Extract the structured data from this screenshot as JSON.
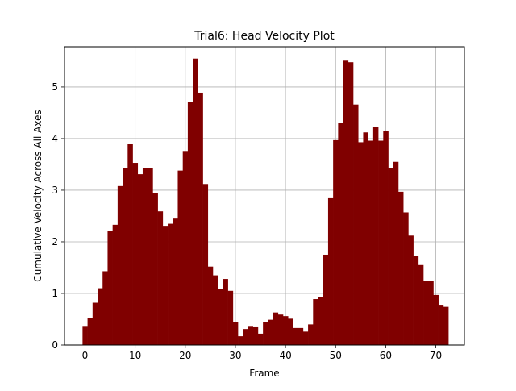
{
  "chart_data": {
    "type": "bar",
    "title": "Trial6: Head Velocity Plot",
    "xlabel": "Frame",
    "ylabel": "Cumulative Velocity Across All Axes",
    "bar_color": "#800000",
    "xlim": [
      -4.1,
      75.7
    ],
    "ylim": [
      0,
      5.78
    ],
    "xticks": [
      0,
      10,
      20,
      30,
      40,
      50,
      60,
      70
    ],
    "yticks": [
      0,
      1,
      2,
      3,
      4,
      5
    ],
    "grid": true,
    "bar_width": 1.0,
    "x": [
      0,
      1,
      2,
      3,
      4,
      5,
      6,
      7,
      8,
      9,
      10,
      11,
      12,
      13,
      14,
      15,
      16,
      17,
      18,
      19,
      20,
      21,
      22,
      23,
      24,
      25,
      26,
      27,
      28,
      29,
      30,
      31,
      32,
      33,
      34,
      35,
      36,
      37,
      38,
      39,
      40,
      41,
      42,
      43,
      44,
      45,
      46,
      47,
      48,
      49,
      50,
      51,
      52,
      53,
      54,
      55,
      56,
      57,
      58,
      59,
      60,
      61,
      62,
      63,
      64,
      65,
      66,
      67,
      68,
      69,
      70,
      71,
      72
    ],
    "values": [
      0.37,
      0.52,
      0.82,
      1.1,
      1.43,
      2.21,
      2.33,
      3.08,
      3.43,
      3.89,
      3.53,
      3.31,
      3.43,
      3.43,
      2.95,
      2.59,
      2.31,
      2.35,
      2.45,
      3.38,
      3.76,
      4.71,
      5.55,
      4.89,
      3.12,
      1.52,
      1.35,
      1.09,
      1.28,
      1.05,
      0.45,
      0.17,
      0.31,
      0.37,
      0.36,
      0.22,
      0.45,
      0.49,
      0.63,
      0.59,
      0.56,
      0.51,
      0.33,
      0.33,
      0.26,
      0.4,
      0.89,
      0.93,
      1.75,
      2.86,
      3.97,
      4.31,
      5.51,
      5.48,
      4.66,
      3.93,
      4.12,
      3.96,
      4.22,
      3.96,
      4.14,
      3.43,
      3.55,
      2.97,
      2.57,
      2.12,
      1.72,
      1.55,
      1.24,
      1.24,
      0.97,
      0.78,
      0.74
    ]
  }
}
